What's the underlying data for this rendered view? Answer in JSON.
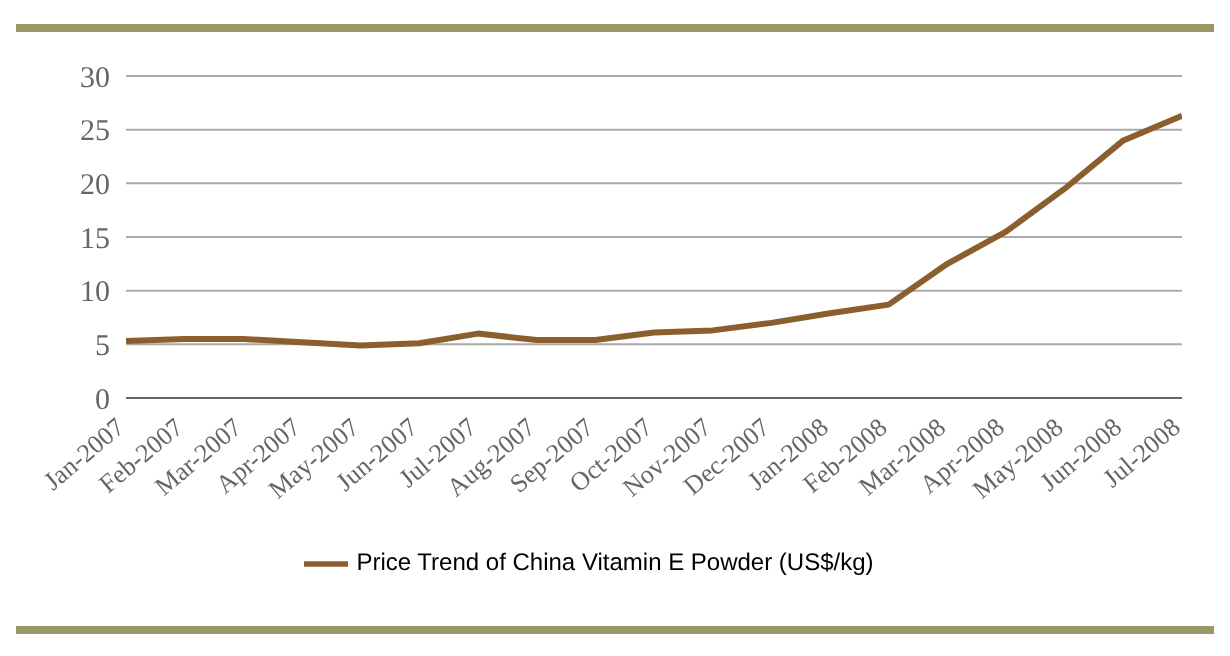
{
  "chart_data": {
    "type": "line",
    "categories": [
      "Jan-2007",
      "Feb-2007",
      "Mar-2007",
      "Apr-2007",
      "May-2007",
      "Jun-2007",
      "Jul-2007",
      "Aug-2007",
      "Sep-2007",
      "Oct-2007",
      "Nov-2007",
      "Dec-2007",
      "Jan-2008",
      "Feb-2008",
      "Mar-2008",
      "Apr-2008",
      "May-2008",
      "Jun-2008",
      "Jul-2008"
    ],
    "series": [
      {
        "name": "Price Trend of China Vitamin E Powder (US$/kg)",
        "color": "#8b5e2e",
        "values": [
          5.3,
          5.5,
          5.5,
          5.2,
          4.9,
          5.1,
          6.0,
          5.4,
          5.4,
          6.1,
          6.3,
          7.0,
          7.9,
          8.7,
          12.5,
          15.5,
          19.5,
          24.0,
          26.3
        ]
      }
    ],
    "ylim": [
      0,
      30
    ],
    "yticks": [
      0,
      5,
      10,
      15,
      20,
      25,
      30
    ],
    "grid": "y",
    "legend": "bottom",
    "marker": "none",
    "line_style": "solid"
  }
}
